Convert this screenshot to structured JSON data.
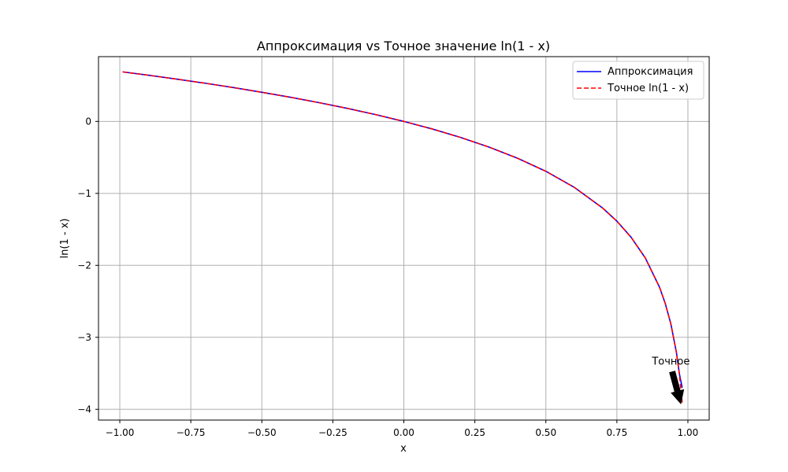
{
  "chart_data": {
    "type": "line",
    "title": "Аппроксимация vs Точное значение ln(1 - x)",
    "xlabel": "x",
    "ylabel": "ln(1 - x)",
    "xlim": [
      -1.075,
      1.075
    ],
    "ylim": [
      -4.15,
      0.9
    ],
    "x_ticks": [
      -1.0,
      -0.75,
      -0.5,
      -0.25,
      0.0,
      0.25,
      0.5,
      0.75,
      1.0
    ],
    "x_tick_labels": [
      "−1.00",
      "−0.75",
      "−0.50",
      "−0.25",
      "0.00",
      "0.25",
      "0.50",
      "0.75",
      "1.00"
    ],
    "y_ticks": [
      0,
      -1,
      -2,
      -3,
      -4
    ],
    "y_tick_labels": [
      "0",
      "−1",
      "−2",
      "−3",
      "−4"
    ],
    "grid": true,
    "legend_position": "top-right",
    "series": [
      {
        "name": "Аппроксимация",
        "color": "#0000ff",
        "style": "solid",
        "x": [
          -0.99,
          -0.9,
          -0.8,
          -0.7,
          -0.6,
          -0.5,
          -0.4,
          -0.3,
          -0.2,
          -0.1,
          0.0,
          0.1,
          0.2,
          0.3,
          0.4,
          0.5,
          0.6,
          0.7,
          0.75,
          0.8,
          0.85,
          0.9,
          0.92,
          0.94,
          0.96,
          0.97,
          0.98
        ],
        "y": [
          0.688,
          0.642,
          0.588,
          0.531,
          0.47,
          0.405,
          0.336,
          0.262,
          0.182,
          0.095,
          0.0,
          -0.105,
          -0.223,
          -0.357,
          -0.511,
          -0.693,
          -0.916,
          -1.204,
          -1.386,
          -1.609,
          -1.897,
          -2.303,
          -2.526,
          -2.813,
          -3.219,
          -3.507,
          -3.7
        ]
      },
      {
        "name": "Точное ln(1 - x)",
        "color": "#ff0000",
        "style": "dashed",
        "x": [
          -0.99,
          -0.9,
          -0.8,
          -0.7,
          -0.6,
          -0.5,
          -0.4,
          -0.3,
          -0.2,
          -0.1,
          0.0,
          0.1,
          0.2,
          0.3,
          0.4,
          0.5,
          0.6,
          0.7,
          0.75,
          0.8,
          0.85,
          0.9,
          0.92,
          0.94,
          0.96,
          0.97,
          0.98
        ],
        "y": [
          0.688,
          0.642,
          0.588,
          0.531,
          0.47,
          0.405,
          0.336,
          0.262,
          0.182,
          0.095,
          0.0,
          -0.105,
          -0.223,
          -0.357,
          -0.511,
          -0.693,
          -0.916,
          -1.204,
          -1.386,
          -1.609,
          -1.897,
          -2.303,
          -2.526,
          -2.813,
          -3.219,
          -3.507,
          -3.912
        ]
      }
    ],
    "annotation": {
      "text": "Точное",
      "text_x": 0.94,
      "text_y": -3.38,
      "arrow_from_x": 0.945,
      "arrow_from_y": -3.48,
      "arrow_to_x": 0.975,
      "arrow_to_y": -3.92
    }
  }
}
